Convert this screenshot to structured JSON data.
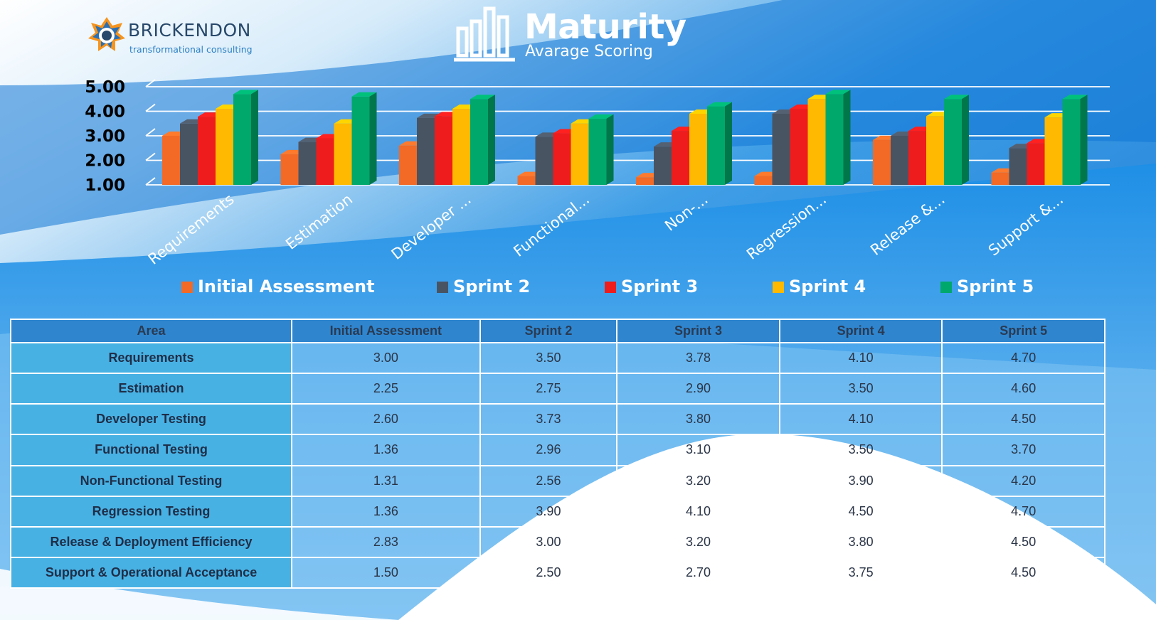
{
  "logo": {
    "name": "BRICKENDON",
    "tagline": "transformational consulting"
  },
  "header": {
    "title": "Maturity",
    "subtitle": "Avarage Scoring"
  },
  "colors": {
    "initial": "#f26a26",
    "sprint2": "#495463",
    "sprint3": "#ee1c1c",
    "sprint4": "#ffb900",
    "sprint5": "#00a86b",
    "grid": "#ffffff"
  },
  "chart_data": {
    "type": "bar",
    "title": "Maturity",
    "subtitle": "Avarage Scoring",
    "xlabel": "",
    "ylabel": "",
    "ylim": [
      1,
      5
    ],
    "yticks": [
      "1.00",
      "2.00",
      "3.00",
      "4.00",
      "5.00"
    ],
    "grid": true,
    "legend": "bottom",
    "categories": [
      "Requirements",
      "Estimation",
      "Developer Testing",
      "Functional Testing",
      "Non-Functional Testing",
      "Regression Testing",
      "Release & Deployment Efficiency",
      "Support & Operational Acceptance"
    ],
    "category_labels": [
      "Requirements",
      "Estimation",
      "Developer ...",
      "Functional...",
      "Non-...",
      "Regression...",
      "Release &...",
      "Support &..."
    ],
    "series": [
      {
        "name": "Initial Assessment",
        "color": "#f26a26",
        "values": [
          3.0,
          2.25,
          2.6,
          1.36,
          1.31,
          1.36,
          2.83,
          1.5
        ]
      },
      {
        "name": "Sprint 2",
        "color": "#495463",
        "values": [
          3.5,
          2.75,
          3.73,
          2.96,
          2.56,
          3.9,
          3.0,
          2.5
        ]
      },
      {
        "name": "Sprint 3",
        "color": "#ee1c1c",
        "values": [
          3.78,
          2.9,
          3.8,
          3.1,
          3.2,
          4.1,
          3.2,
          2.7
        ]
      },
      {
        "name": "Sprint 4",
        "color": "#ffb900",
        "values": [
          4.1,
          3.5,
          4.1,
          3.5,
          3.9,
          4.5,
          3.8,
          3.75
        ]
      },
      {
        "name": "Sprint 5",
        "color": "#00a86b",
        "values": [
          4.7,
          4.6,
          4.5,
          3.7,
          4.2,
          4.7,
          4.5,
          4.5
        ]
      }
    ]
  },
  "table": {
    "headers": [
      "Area",
      "Initial Assessment",
      "Sprint 2",
      "Sprint 3",
      "Sprint 4",
      "Sprint 5"
    ],
    "rows": [
      [
        "Requirements",
        "3.00",
        "3.50",
        "3.78",
        "4.10",
        "4.70"
      ],
      [
        "Estimation",
        "2.25",
        "2.75",
        "2.90",
        "3.50",
        "4.60"
      ],
      [
        "Developer Testing",
        "2.60",
        "3.73",
        "3.80",
        "4.10",
        "4.50"
      ],
      [
        "Functional Testing",
        "1.36",
        "2.96",
        "3.10",
        "3.50",
        "3.70"
      ],
      [
        "Non-Functional Testing",
        "1.31",
        "2.56",
        "3.20",
        "3.90",
        "4.20"
      ],
      [
        "Regression Testing",
        "1.36",
        "3.90",
        "4.10",
        "4.50",
        "4.70"
      ],
      [
        "Release & Deployment Efficiency",
        "2.83",
        "3.00",
        "3.20",
        "3.80",
        "4.50"
      ],
      [
        "Support & Operational Acceptance",
        "1.50",
        "2.50",
        "2.70",
        "3.75",
        "4.50"
      ]
    ]
  }
}
